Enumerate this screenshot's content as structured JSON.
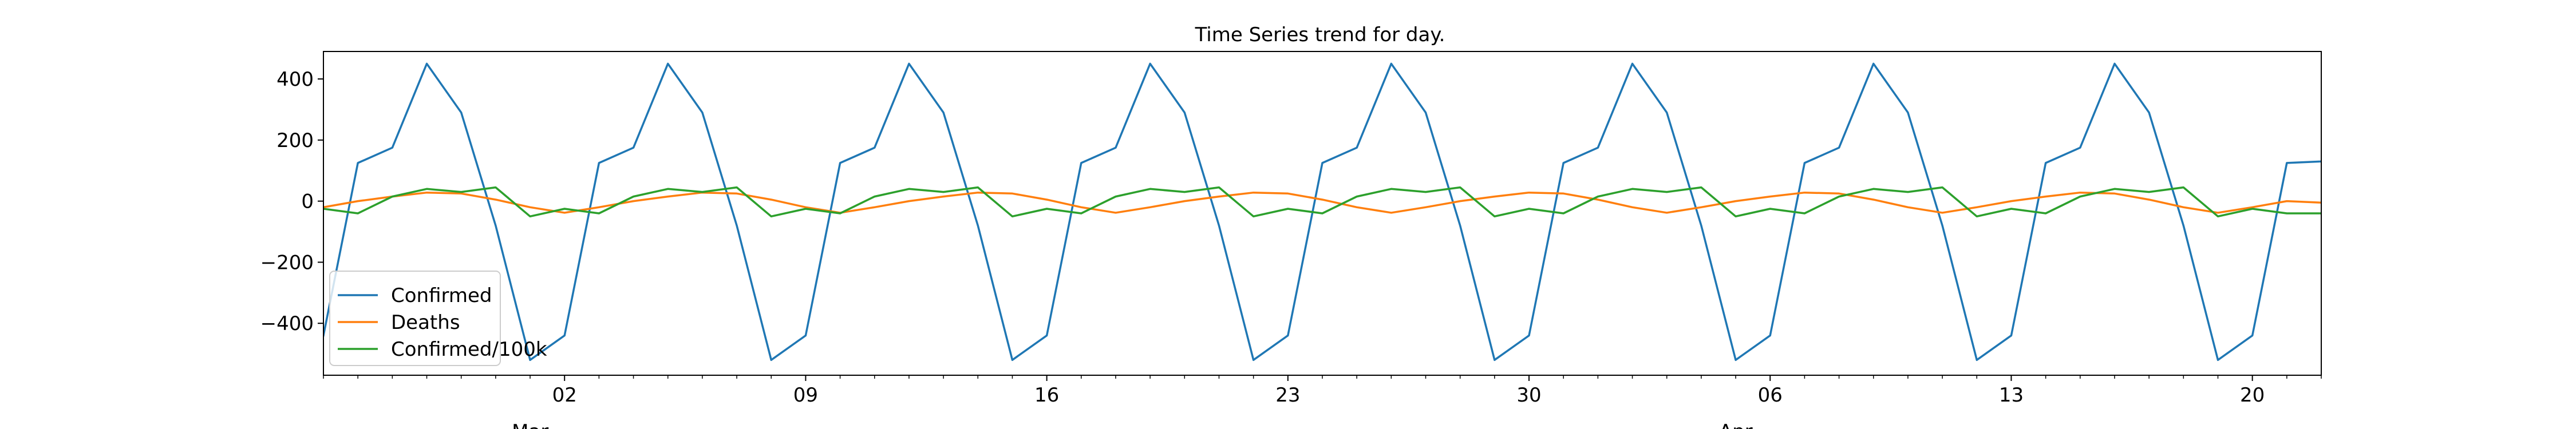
{
  "chart_data": {
    "type": "line",
    "title": "Time Series trend for day.",
    "xlabel": "",
    "ylabel": "",
    "x": [
      "2020-02-24",
      "2020-02-25",
      "2020-02-26",
      "2020-02-27",
      "2020-02-28",
      "2020-02-29",
      "2020-03-01",
      "2020-03-02",
      "2020-03-03",
      "2020-03-04",
      "2020-03-05",
      "2020-03-06",
      "2020-03-07",
      "2020-03-08",
      "2020-03-09",
      "2020-03-10",
      "2020-03-11",
      "2020-03-12",
      "2020-03-13",
      "2020-03-14",
      "2020-03-15",
      "2020-03-16",
      "2020-03-17",
      "2020-03-18",
      "2020-03-19",
      "2020-03-20",
      "2020-03-21",
      "2020-03-22",
      "2020-03-23",
      "2020-03-24",
      "2020-03-25",
      "2020-03-26",
      "2020-03-27",
      "2020-03-28",
      "2020-03-29",
      "2020-03-30",
      "2020-03-31",
      "2020-04-01",
      "2020-04-02",
      "2020-04-03",
      "2020-04-04",
      "2020-04-05",
      "2020-04-06",
      "2020-04-07",
      "2020-04-08",
      "2020-04-09",
      "2020-04-10",
      "2020-04-11",
      "2020-04-12",
      "2020-04-13",
      "2020-04-14",
      "2020-04-15",
      "2020-04-16",
      "2020-04-17",
      "2020-04-18",
      "2020-04-19",
      "2020-04-20",
      "2020-04-21",
      "2020-04-22"
    ],
    "series": [
      {
        "name": "Confirmed",
        "color": "#1f77b4",
        "values": [
          -440,
          125,
          175,
          450,
          290,
          -80,
          -520,
          -440,
          125,
          175,
          450,
          290,
          -80,
          -520,
          -440,
          125,
          175,
          450,
          290,
          -80,
          -520,
          -440,
          125,
          175,
          450,
          290,
          -80,
          -520,
          -440,
          125,
          175,
          450,
          290,
          -80,
          -520,
          -440,
          125,
          175,
          450,
          290,
          -80,
          -520,
          -440,
          125,
          175,
          450,
          290,
          -80,
          -520,
          -440,
          125,
          175,
          450,
          290,
          -80,
          -520,
          -440,
          125,
          130
        ]
      },
      {
        "name": "Deaths",
        "color": "#ff7f0e",
        "values": [
          -20,
          0,
          15,
          28,
          25,
          5,
          -20,
          -38,
          -20,
          0,
          15,
          28,
          25,
          5,
          -20,
          -38,
          -20,
          0,
          15,
          28,
          25,
          5,
          -20,
          -38,
          -20,
          0,
          15,
          28,
          25,
          5,
          -20,
          -38,
          -20,
          0,
          15,
          28,
          25,
          5,
          -20,
          -38,
          -20,
          0,
          15,
          28,
          25,
          5,
          -20,
          -38,
          -20,
          0,
          15,
          28,
          25,
          5,
          -20,
          -38,
          -20,
          0,
          -5
        ]
      },
      {
        "name": "Confirmed/100k",
        "color": "#2ca02c",
        "values": [
          -25,
          -40,
          15,
          40,
          30,
          45,
          -50,
          -25,
          -40,
          15,
          40,
          30,
          45,
          -50,
          -25,
          -40,
          15,
          40,
          30,
          45,
          -50,
          -25,
          -40,
          15,
          40,
          30,
          45,
          -50,
          -25,
          -40,
          15,
          40,
          30,
          45,
          -50,
          -25,
          -40,
          15,
          40,
          30,
          45,
          -50,
          -25,
          -40,
          15,
          40,
          30,
          45,
          -50,
          -25,
          -40,
          15,
          40,
          30,
          45,
          -50,
          -25,
          -40,
          -40
        ]
      }
    ],
    "ylim": [
      -570,
      490
    ],
    "yticks": [
      -400,
      -200,
      0,
      200,
      400
    ],
    "ytick_labels": [
      "−400",
      "−200",
      "0",
      "200",
      "400"
    ],
    "xticks": [
      {
        "date": "2020-03-02",
        "label": "02"
      },
      {
        "date": "2020-03-09",
        "label": "09"
      },
      {
        "date": "2020-03-16",
        "label": "16"
      },
      {
        "date": "2020-03-23",
        "label": "23"
      },
      {
        "date": "2020-03-30",
        "label": "30"
      },
      {
        "date": "2020-04-06",
        "label": "06"
      },
      {
        "date": "2020-04-13",
        "label": "13"
      },
      {
        "date": "2020-04-20",
        "label": "20"
      }
    ],
    "xlim": [
      "2020-02-24",
      "2020-04-22"
    ],
    "month_labels": [
      {
        "date": "2020-03-02",
        "label": "Mar"
      },
      {
        "date": "2020-04-06",
        "label": "Apr"
      }
    ],
    "grid": false,
    "legend_position": "lower-left"
  }
}
